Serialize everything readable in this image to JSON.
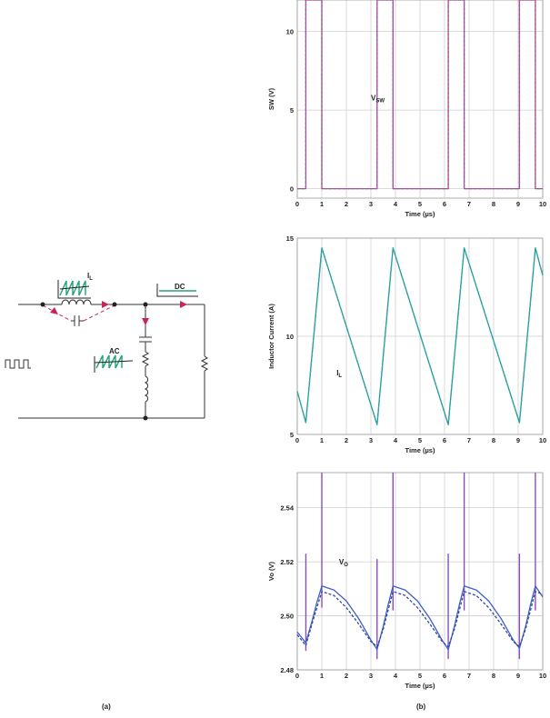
{
  "captions": {
    "a": "(a)",
    "b": "(b)"
  },
  "circuit": {
    "il_label": "I",
    "il_sub": "L",
    "ac_label": "AC",
    "dc_label": "DC",
    "colors": {
      "wire": "#333333",
      "arrow": "#c8245a",
      "wave_green": "#1fa37c",
      "wave_dark": "#222222"
    }
  },
  "chart_data": [
    {
      "type": "line",
      "xlabel": "Time (µs)",
      "ylabel": "SW (V)",
      "annotation": "V",
      "annotation_sub": "SW",
      "xlim": [
        0,
        10
      ],
      "ylim": [
        -0.6,
        12
      ],
      "xticks": [
        "0",
        "1",
        "2",
        "3",
        "4",
        "5",
        "6",
        "7",
        "8",
        "9",
        "10"
      ],
      "yticks": [
        {
          "v": 0,
          "t": "0"
        },
        {
          "v": 5,
          "t": "5"
        },
        {
          "v": 10,
          "t": "10"
        }
      ],
      "series": [
        {
          "style": "solid",
          "color": "#5b6fc0",
          "x": [
            0,
            0.35,
            0.35,
            1.0,
            1.0,
            3.25,
            3.25,
            3.9,
            3.9,
            6.15,
            6.15,
            6.8,
            6.8,
            9.05,
            9.05,
            9.7,
            9.7,
            10
          ],
          "y": [
            0,
            0,
            12,
            12,
            0,
            0,
            12,
            12,
            0,
            0,
            12,
            12,
            0,
            0,
            12,
            12,
            0,
            0
          ]
        },
        {
          "style": "dashed",
          "color": "#d2457a",
          "x": [
            0,
            0.35,
            0.35,
            1.0,
            1.0,
            3.25,
            3.25,
            3.9,
            3.9,
            6.15,
            6.15,
            6.8,
            6.8,
            9.05,
            9.05,
            9.7,
            9.7,
            10
          ],
          "y": [
            0,
            0,
            12,
            12,
            0,
            0,
            12,
            12,
            0,
            0,
            12,
            12,
            0,
            0,
            12,
            12,
            0,
            0
          ]
        }
      ]
    },
    {
      "type": "line",
      "xlabel": "Time (µs)",
      "ylabel": "Inductor Current (A)",
      "annotation": "I",
      "annotation_sub": "L",
      "xlim": [
        0,
        10
      ],
      "ylim": [
        5,
        15
      ],
      "xticks": [
        "0",
        "1",
        "2",
        "3",
        "4",
        "5",
        "6",
        "7",
        "8",
        "9",
        "10"
      ],
      "yticks": [
        {
          "v": 5,
          "t": "5"
        },
        {
          "v": 10,
          "t": "10"
        },
        {
          "v": 15,
          "t": "15"
        }
      ],
      "series": [
        {
          "style": "solid",
          "color": "#2e86a8",
          "x": [
            0,
            0.35,
            1.0,
            3.25,
            3.9,
            6.15,
            6.8,
            9.05,
            9.7,
            10
          ],
          "y": [
            7.2,
            5.6,
            14.5,
            5.5,
            14.5,
            5.5,
            14.5,
            5.6,
            14.5,
            13.1
          ]
        },
        {
          "style": "dashed",
          "color": "#2bb39a",
          "x": [
            0,
            0.35,
            1.0,
            3.25,
            3.9,
            6.15,
            6.8,
            9.05,
            9.7,
            10
          ],
          "y": [
            7.2,
            5.6,
            14.5,
            5.5,
            14.5,
            5.5,
            14.5,
            5.6,
            14.5,
            13.1
          ]
        }
      ]
    },
    {
      "type": "line",
      "xlabel": "Time (µs)",
      "ylabel": "Vo (V)",
      "annotation": "V",
      "annotation_sub": "O",
      "xlim": [
        0,
        10
      ],
      "ylim": [
        2.48,
        2.553
      ],
      "xticks": [
        "0",
        "1",
        "2",
        "3",
        "4",
        "5",
        "6",
        "7",
        "8",
        "9",
        "10"
      ],
      "yticks": [
        {
          "v": 2.48,
          "t": "2.48"
        },
        {
          "v": 2.5,
          "t": "2.50"
        },
        {
          "v": 2.52,
          "t": "2.52"
        },
        {
          "v": 2.54,
          "t": "2.54"
        }
      ],
      "spikes": {
        "color": "#8a4fb8",
        "items": [
          {
            "x": 0.35,
            "y0": 2.487,
            "y1": 2.523
          },
          {
            "x": 1.0,
            "y0": 2.503,
            "y1": 2.553
          },
          {
            "x": 3.25,
            "y0": 2.484,
            "y1": 2.521
          },
          {
            "x": 3.9,
            "y0": 2.502,
            "y1": 2.553
          },
          {
            "x": 6.15,
            "y0": 2.484,
            "y1": 2.523
          },
          {
            "x": 6.8,
            "y0": 2.502,
            "y1": 2.553
          },
          {
            "x": 9.05,
            "y0": 2.484,
            "y1": 2.523
          },
          {
            "x": 9.7,
            "y0": 2.502,
            "y1": 2.553
          }
        ]
      },
      "series": [
        {
          "style": "solid",
          "color": "#4060c8",
          "x": [
            0,
            0.35,
            0.6,
            0.8,
            1.0,
            1.5,
            2.0,
            2.5,
            3.0,
            3.25,
            3.5,
            3.7,
            3.9,
            4.4,
            4.9,
            5.4,
            5.9,
            6.15,
            6.4,
            6.6,
            6.8,
            7.3,
            7.8,
            8.3,
            8.8,
            9.05,
            9.3,
            9.5,
            9.7,
            10
          ],
          "y": [
            2.494,
            2.49,
            2.498,
            2.505,
            2.511,
            2.5095,
            2.5055,
            2.499,
            2.491,
            2.4875,
            2.496,
            2.504,
            2.511,
            2.5095,
            2.5055,
            2.499,
            2.491,
            2.4875,
            2.496,
            2.504,
            2.511,
            2.5095,
            2.5055,
            2.499,
            2.491,
            2.488,
            2.496,
            2.504,
            2.511,
            2.507
          ]
        },
        {
          "style": "dashed",
          "color": "#2b4a9a",
          "x": [
            0,
            0.35,
            0.6,
            0.8,
            1.0,
            1.5,
            2.0,
            2.5,
            3.0,
            3.25,
            3.5,
            3.7,
            3.9,
            4.4,
            4.9,
            5.4,
            5.9,
            6.15,
            6.4,
            6.6,
            6.8,
            7.3,
            7.8,
            8.3,
            8.8,
            9.05,
            9.3,
            9.5,
            9.7,
            10
          ],
          "y": [
            2.493,
            2.489,
            2.497,
            2.503,
            2.509,
            2.5075,
            2.503,
            2.497,
            2.4905,
            2.4885,
            2.495,
            2.502,
            2.509,
            2.5075,
            2.503,
            2.497,
            2.4905,
            2.4885,
            2.495,
            2.502,
            2.509,
            2.5075,
            2.503,
            2.497,
            2.4905,
            2.4885,
            2.495,
            2.502,
            2.509,
            2.508
          ]
        }
      ]
    }
  ]
}
